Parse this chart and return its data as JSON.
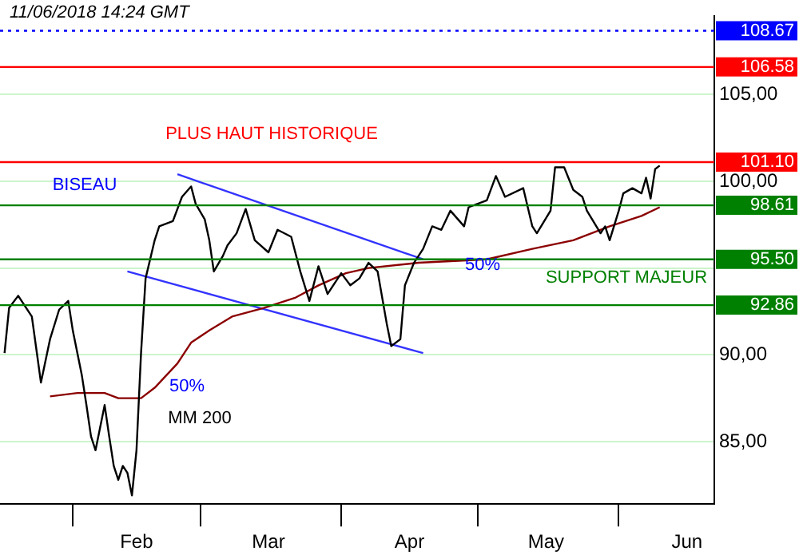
{
  "chart_data": {
    "type": "line",
    "xlim": [
      "2018-01-16",
      "2018-06-22"
    ],
    "xticks": [
      {
        "value": "2018-02-01",
        "label": null
      },
      {
        "value": "2018-02-15",
        "label": "Feb"
      },
      {
        "value": "2018-03-01",
        "label": null
      },
      {
        "value": "2018-03-16",
        "label": "Mar"
      },
      {
        "value": "2018-04-01",
        "label": null
      },
      {
        "value": "2018-04-16",
        "label": "Apr"
      },
      {
        "value": "2018-05-01",
        "label": null
      },
      {
        "value": "2018-05-16",
        "label": "May"
      },
      {
        "value": "2018-06-01",
        "label": null
      },
      {
        "value": "2018-06-16",
        "label": "Jun"
      }
    ],
    "ylim": [
      81.4,
      109.5
    ],
    "yticks": [
      {
        "value": 85,
        "label": "85,00"
      },
      {
        "value": 90,
        "label": "90,00"
      },
      {
        "value": 95,
        "label": null
      },
      {
        "value": 100,
        "label": "100,00"
      },
      {
        "value": 105,
        "label": "105,00"
      }
    ],
    "grid": "y",
    "legend": false,
    "marker": "none",
    "line_style": "solid",
    "series": [
      {
        "type": "line",
        "color": "#000000",
        "x": [
          "2018-01-17",
          "2018-01-18",
          "2018-01-20",
          "2018-01-23",
          "2018-01-24",
          "2018-01-25",
          "2018-01-27",
          "2018-01-29",
          "2018-01-31",
          "2018-02-01",
          "2018-02-02",
          "2018-02-03",
          "2018-02-04",
          "2018-02-05",
          "2018-02-06",
          "2018-02-07",
          "2018-02-08",
          "2018-02-09",
          "2018-02-10",
          "2018-02-11",
          "2018-02-12",
          "2018-02-13",
          "2018-02-14",
          "2018-02-15",
          "2018-02-16",
          "2018-02-17",
          "2018-02-19",
          "2018-02-20",
          "2018-02-23",
          "2018-02-25",
          "2018-02-27",
          "2018-02-28",
          "2018-03-02",
          "2018-03-03",
          "2018-03-04",
          "2018-03-06",
          "2018-03-07",
          "2018-03-09",
          "2018-03-11",
          "2018-03-13",
          "2018-03-16",
          "2018-03-18",
          "2018-03-21",
          "2018-03-23",
          "2018-03-25",
          "2018-03-27",
          "2018-03-29",
          "2018-04-01",
          "2018-04-03",
          "2018-04-05",
          "2018-04-07",
          "2018-04-09",
          "2018-04-11",
          "2018-04-12",
          "2018-04-14",
          "2018-04-15",
          "2018-04-17",
          "2018-04-19",
          "2018-04-21",
          "2018-04-23",
          "2018-04-25",
          "2018-04-28",
          "2018-04-29",
          "2018-05-03",
          "2018-05-05",
          "2018-05-07",
          "2018-05-11",
          "2018-05-13",
          "2018-05-14",
          "2018-05-17",
          "2018-05-18",
          "2018-05-20",
          "2018-05-22",
          "2018-05-24",
          "2018-05-25",
          "2018-05-28",
          "2018-05-29",
          "2018-05-30",
          "2018-06-01",
          "2018-06-02",
          "2018-06-04",
          "2018-06-06",
          "2018-06-07",
          "2018-06-08",
          "2018-06-09",
          "2018-06-10"
        ],
        "values": [
          90.1,
          92.7,
          93.4,
          92.2,
          90.3,
          88.4,
          90.9,
          92.6,
          93.1,
          91.4,
          90.1,
          88.8,
          87.1,
          85.3,
          84.5,
          85.8,
          87.1,
          85.3,
          83.6,
          82.8,
          83.6,
          83.2,
          81.9,
          84.5,
          90.1,
          94.4,
          96.6,
          97.4,
          97.7,
          99.1,
          99.7,
          98.7,
          97.8,
          96.6,
          94.8,
          95.7,
          96.3,
          97.0,
          98.4,
          96.6,
          95.9,
          97.2,
          96.8,
          94.8,
          93.1,
          95.1,
          93.5,
          94.7,
          94.0,
          94.4,
          95.3,
          94.8,
          91.8,
          90.5,
          90.9,
          94.0,
          95.3,
          96.1,
          97.4,
          97.2,
          98.3,
          97.4,
          98.5,
          98.9,
          100.3,
          99.1,
          99.6,
          97.4,
          97.0,
          98.3,
          100.8,
          100.8,
          99.5,
          99.1,
          98.3,
          97.0,
          97.4,
          96.6,
          98.3,
          99.3,
          99.6,
          99.3,
          100.2,
          99.0,
          100.7,
          100.9
        ]
      },
      {
        "type": "line",
        "color": "#8b0000",
        "x": [
          "2018-01-27",
          "2018-02-02",
          "2018-02-08",
          "2018-02-11",
          "2018-02-16",
          "2018-02-19",
          "2018-02-24",
          "2018-02-27",
          "2018-03-03",
          "2018-03-08",
          "2018-03-15",
          "2018-03-22",
          "2018-03-27",
          "2018-04-02",
          "2018-04-07",
          "2018-04-18",
          "2018-05-03",
          "2018-05-13",
          "2018-05-22",
          "2018-05-30",
          "2018-06-06",
          "2018-06-10"
        ],
        "values": [
          87.6,
          87.8,
          87.8,
          87.5,
          87.5,
          88.1,
          89.5,
          90.7,
          91.4,
          92.2,
          92.7,
          93.3,
          94.0,
          94.7,
          95.0,
          95.3,
          95.5,
          96.1,
          96.6,
          97.4,
          98.0,
          98.5
        ]
      },
      {
        "type": "line",
        "color": "#3333ff",
        "x": [
          "2018-02-24",
          "2018-04-19"
        ],
        "values": [
          100.4,
          95.5
        ]
      },
      {
        "type": "line",
        "color": "#3333ff",
        "x": [
          "2018-02-13",
          "2018-04-19"
        ],
        "values": [
          94.8,
          90.1
        ]
      }
    ],
    "ref_lines": [
      {
        "axis": "y",
        "value": 108.67,
        "label": "108.67",
        "color": "#0000ff",
        "line_style": "dotted"
      },
      {
        "axis": "y",
        "value": 106.58,
        "label": "106.58",
        "color": "#ff0000",
        "line_style": "solid"
      },
      {
        "axis": "y",
        "value": 101.1,
        "label": "101.10",
        "color": "#ff0000",
        "line_style": "solid"
      },
      {
        "axis": "y",
        "value": 98.61,
        "label": "98.61",
        "color": "#008000",
        "line_style": "solid"
      },
      {
        "axis": "y",
        "value": 95.5,
        "label": "95.50",
        "color": "#008000",
        "line_style": "solid"
      },
      {
        "axis": "y",
        "value": 92.86,
        "label": "92.86",
        "color": "#008000",
        "line_style": "solid"
      }
    ],
    "annotations": [
      "11/06/2018 14:24 GMT",
      "PLUS HAUT HISTORIQUE",
      "BISEAU",
      "50%",
      "MM 200",
      "50%",
      "SUPPORT MAJEUR"
    ]
  }
}
